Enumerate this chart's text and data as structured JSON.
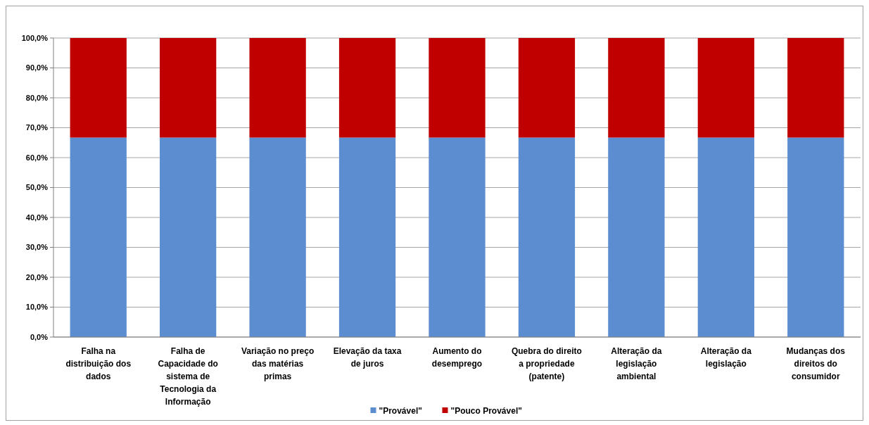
{
  "chart_data": {
    "type": "bar",
    "stacked": true,
    "categories": [
      "Falha na distribuição dos dados",
      "Falha de Capacidade do sistema de Tecnologia da Informação",
      "Variação no preço das matérias primas",
      "Elevação da taxa de juros",
      "Aumento do desemprego",
      "Quebra do direito a propriedade (patente)",
      "Alteração da legislação ambiental",
      "Alteração da legislação",
      "Mudanças dos direitos do consumidor"
    ],
    "series": [
      {
        "name": "\"Provável\"",
        "color": "#5b8dd0",
        "values": [
          66.7,
          66.7,
          66.7,
          66.7,
          66.7,
          66.7,
          66.7,
          66.7,
          66.7
        ]
      },
      {
        "name": "\"Pouco Provável\"",
        "color": "#c00000",
        "values": [
          33.3,
          33.3,
          33.3,
          33.3,
          33.3,
          33.3,
          33.3,
          33.3,
          33.3
        ]
      }
    ],
    "ylim": [
      0,
      100
    ],
    "yticks": [
      {
        "value": 0,
        "label": "0,0%"
      },
      {
        "value": 10,
        "label": "10,0%"
      },
      {
        "value": 20,
        "label": "20,0%"
      },
      {
        "value": 30,
        "label": "30,0%"
      },
      {
        "value": 40,
        "label": "40,0%"
      },
      {
        "value": 50,
        "label": "50,0%"
      },
      {
        "value": 60,
        "label": "60,0%"
      },
      {
        "value": 70,
        "label": "70,0%"
      },
      {
        "value": 80,
        "label": "80,0%"
      },
      {
        "value": 90,
        "label": "90,0%"
      },
      {
        "value": 100,
        "label": "100,0%"
      }
    ],
    "grid": "y",
    "legend": "bottom"
  }
}
